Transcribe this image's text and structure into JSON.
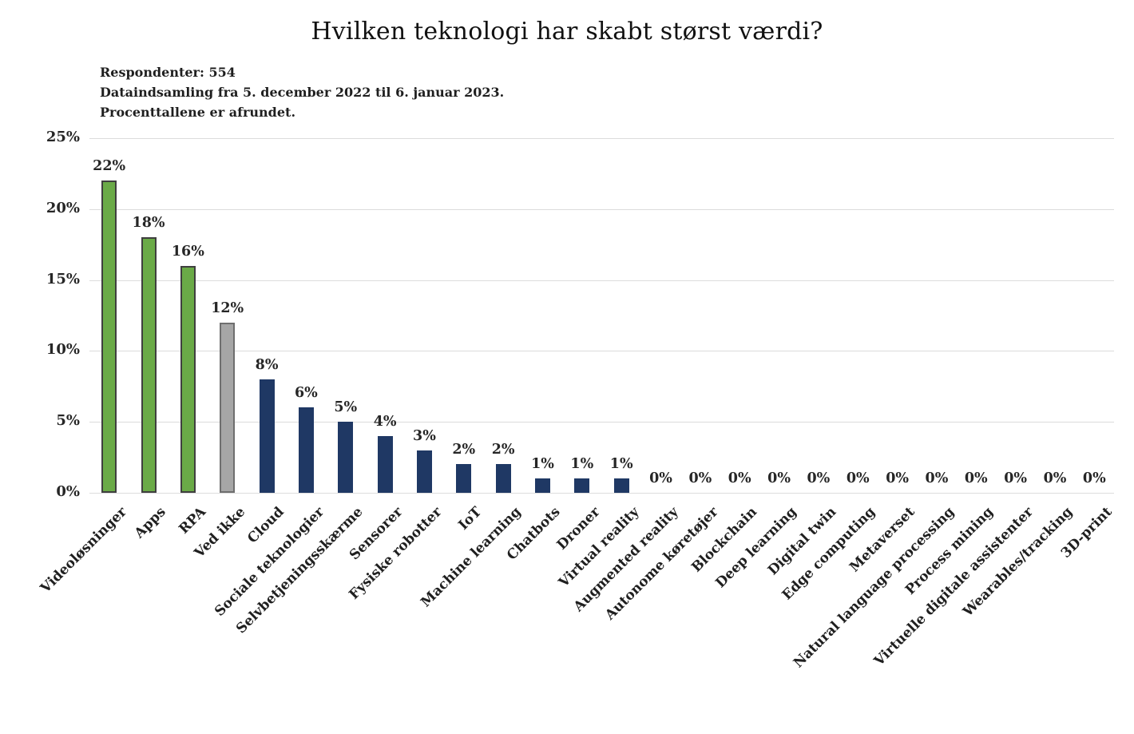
{
  "header": {
    "title": "Hvilken teknologi har skabt størst værdi?",
    "note_line1": "Respondenter: 554",
    "note_line2": "Dataindsamling fra 5. december 2022 til 6. januar 2023.",
    "note_line3": "Procenttallene er afrundet."
  },
  "chart_data": {
    "type": "bar",
    "title": "Hvilken teknologi har skabt størst værdi?",
    "notes": [
      "Respondenter: 554",
      "Dataindsamling fra 5. december 2022 til 6. januar 2023.",
      "Procenttallene er afrundet."
    ],
    "categories": [
      "Videoløsninger",
      "Apps",
      "RPA",
      "Ved ikke",
      "Cloud",
      "Sociale teknologier",
      "Selvbetjeningsskærme",
      "Sensorer",
      "Fysiske robotter",
      "IoT",
      "Machine learning",
      "Chatbots",
      "Droner",
      "Virtual reality",
      "Augmented reality",
      "Autonome køretøjer",
      "Blockchain",
      "Deep learning",
      "Digital twin",
      "Edge computing",
      "Metaverset",
      "Natural language processing",
      "Process mining",
      "Virtuelle digitale assistenter",
      "Wearables/tracking",
      "3D-print"
    ],
    "values": [
      22,
      18,
      16,
      12,
      8,
      6,
      5,
      4,
      3,
      2,
      2,
      1,
      1,
      1,
      0,
      0,
      0,
      0,
      0,
      0,
      0,
      0,
      0,
      0,
      0,
      0
    ],
    "value_labels": [
      "22%",
      "18%",
      "16%",
      "12%",
      "8%",
      "6%",
      "5%",
      "4%",
      "3%",
      "2%",
      "2%",
      "1%",
      "1%",
      "1%",
      "0%",
      "0%",
      "0%",
      "0%",
      "0%",
      "0%",
      "0%",
      "0%",
      "0%",
      "0%",
      "0%",
      "0%"
    ],
    "bar_styles": [
      "green",
      "green",
      "green",
      "gray",
      "navy",
      "navy",
      "navy",
      "navy",
      "navy",
      "navy",
      "navy",
      "navy",
      "navy",
      "navy",
      "none",
      "none",
      "none",
      "none",
      "none",
      "none",
      "none",
      "none",
      "none",
      "none",
      "none",
      "none"
    ],
    "colors": {
      "green": {
        "fill": "#6aaa47",
        "border": "#3f3f3f"
      },
      "gray": {
        "fill": "#a6a6a6",
        "border": "#6e6e6e"
      },
      "navy": {
        "fill": "#1f3864",
        "border": "#1f3864"
      }
    },
    "yticks": [
      "0%",
      "5%",
      "10%",
      "15%",
      "20%",
      "25%"
    ],
    "ytick_values": [
      0,
      5,
      10,
      15,
      20,
      25
    ],
    "ylim": [
      0,
      25
    ],
    "xlabel": "",
    "ylabel": "",
    "grid": true,
    "legend": "none",
    "background": "#ffffff"
  }
}
